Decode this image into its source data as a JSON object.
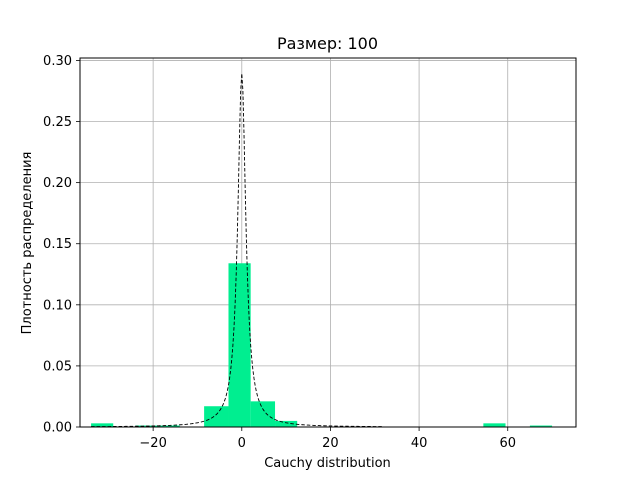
{
  "chart_data": {
    "type": "bar",
    "title": "Размер: 100",
    "xlabel": "Cauchy distribution",
    "ylabel": "Плотность распределения",
    "xlim": [
      -36.5,
      75.4
    ],
    "ylim": [
      0,
      0.302
    ],
    "grid": true,
    "bar_color": "#00ee90",
    "curve_color": "#000000",
    "xticks": [
      -20,
      0,
      20,
      40,
      60
    ],
    "yticks": [
      0.0,
      0.05,
      0.1,
      0.15,
      0.2,
      0.25,
      0.3
    ],
    "xtick_labels": [
      "−20",
      "0",
      "20",
      "40",
      "60"
    ],
    "ytick_labels": [
      "0.00",
      "0.05",
      "0.10",
      "0.15",
      "0.20",
      "0.25",
      "0.30"
    ],
    "bins": [
      {
        "x0": -34.0,
        "x1": -29.0,
        "value": 0.003
      },
      {
        "x0": -24.0,
        "x1": -19.0,
        "value": 0.0012
      },
      {
        "x0": -19.0,
        "x1": -14.0,
        "value": 0.0012
      },
      {
        "x0": -8.5,
        "x1": -3.0,
        "value": 0.017
      },
      {
        "x0": -3.0,
        "x1": 2.0,
        "value": 0.134
      },
      {
        "x0": 2.0,
        "x1": 7.5,
        "value": 0.021
      },
      {
        "x0": 7.5,
        "x1": 12.5,
        "value": 0.005
      },
      {
        "x0": 54.5,
        "x1": 59.5,
        "value": 0.003
      },
      {
        "x0": 65.0,
        "x1": 70.0,
        "value": 0.0012
      }
    ],
    "density_curve": {
      "name": "",
      "style": "dashed",
      "location": 0,
      "scale": 1.1
    }
  }
}
